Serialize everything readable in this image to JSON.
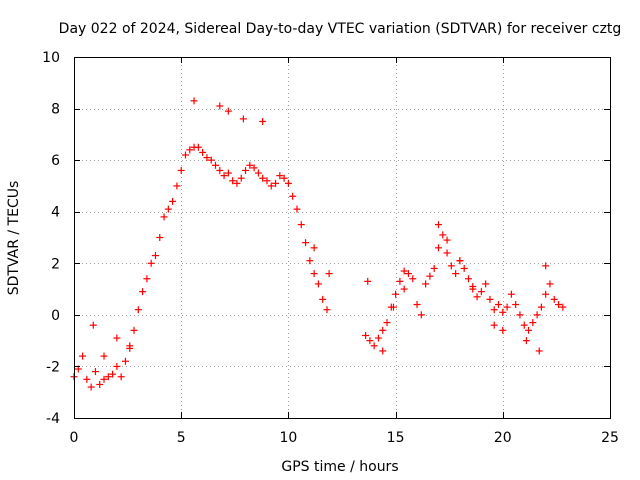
{
  "chart_data": {
    "type": "scatter",
    "title": "Day 022 of 2024, Sidereal Day-to-day VTEC variation (SDTVAR) for receiver cztg",
    "xlabel": "GPS time / hours",
    "ylabel": "SDTVAR / TECUs",
    "xlim": [
      0,
      25
    ],
    "ylim": [
      -4,
      10
    ],
    "xticks": [
      0,
      5,
      10,
      15,
      20,
      25
    ],
    "yticks": [
      -4,
      -2,
      0,
      2,
      4,
      6,
      8,
      10
    ],
    "xtick_labels": [
      "0",
      "5",
      "10",
      "15",
      "20",
      "25"
    ],
    "ytick_labels": [
      "-4",
      "-2",
      "0",
      "2",
      "4",
      "6",
      "8",
      "10"
    ],
    "grid": true,
    "marker": "+",
    "color": "#ff0000",
    "series": [
      {
        "name": "SDTVAR",
        "x": [
          0.0,
          0.2,
          0.4,
          0.6,
          0.8,
          1.0,
          1.2,
          1.4,
          1.6,
          1.8,
          2.0,
          2.2,
          2.4,
          2.6,
          2.8,
          3.0,
          3.2,
          3.4,
          3.6,
          3.8,
          4.0,
          4.2,
          4.4,
          4.6,
          4.8,
          5.0,
          5.2,
          5.4,
          5.6,
          5.8,
          6.0,
          6.2,
          6.4,
          6.6,
          6.8,
          7.0,
          7.2,
          7.4,
          7.6,
          7.8,
          8.0,
          8.2,
          8.4,
          8.6,
          8.8,
          9.0,
          9.2,
          9.4,
          9.6,
          9.8,
          10.0,
          10.2,
          10.4,
          10.6,
          10.8,
          11.0,
          11.2,
          11.4,
          11.6,
          11.8,
          13.6,
          13.8,
          14.0,
          14.2,
          14.4,
          14.6,
          14.8,
          15.0,
          15.2,
          15.4,
          15.6,
          15.8,
          16.0,
          16.2,
          16.4,
          16.6,
          16.8,
          17.0,
          17.2,
          17.4,
          17.6,
          17.8,
          18.0,
          18.2,
          18.4,
          18.6,
          18.8,
          19.0,
          19.2,
          19.4,
          19.6,
          19.8,
          20.0,
          20.2,
          20.4,
          20.6,
          20.8,
          21.0,
          21.2,
          21.4,
          21.6,
          21.8,
          22.0,
          22.2,
          22.4,
          22.6,
          22.8,
          0.9,
          1.4,
          2.0,
          2.6,
          5.6,
          6.8,
          7.2,
          7.9,
          8.8,
          11.2,
          11.9,
          13.7,
          14.4,
          14.9,
          15.4,
          17.0,
          17.4,
          18.0,
          18.6,
          19.6,
          20.0,
          21.1,
          21.7,
          22.0
        ],
        "y": [
          -2.4,
          -2.1,
          -1.6,
          -2.5,
          -2.8,
          -2.2,
          -2.7,
          -2.5,
          -2.4,
          -2.3,
          -2.0,
          -2.4,
          -1.8,
          -1.2,
          -0.6,
          0.2,
          0.9,
          1.4,
          2.0,
          2.3,
          3.0,
          3.8,
          4.1,
          4.4,
          5.0,
          5.6,
          6.2,
          6.4,
          6.5,
          6.5,
          6.3,
          6.1,
          6.0,
          5.8,
          5.6,
          5.4,
          5.5,
          5.2,
          5.1,
          5.3,
          5.6,
          5.8,
          5.7,
          5.5,
          5.3,
          5.2,
          5.0,
          5.1,
          5.4,
          5.3,
          5.1,
          4.6,
          4.1,
          3.5,
          2.8,
          2.1,
          1.6,
          1.2,
          0.6,
          0.2,
          -0.8,
          -1.0,
          -1.2,
          -0.9,
          -0.6,
          -0.3,
          0.3,
          0.8,
          1.3,
          1.0,
          1.6,
          1.4,
          0.4,
          0.0,
          1.2,
          1.5,
          1.8,
          2.6,
          3.1,
          2.4,
          1.9,
          1.6,
          2.1,
          1.8,
          1.4,
          1.0,
          0.7,
          0.9,
          1.2,
          0.6,
          0.2,
          0.4,
          0.1,
          0.3,
          0.8,
          0.4,
          0.0,
          -0.4,
          -0.6,
          -0.3,
          0.0,
          0.3,
          0.8,
          1.2,
          0.6,
          0.4,
          0.3,
          -0.4,
          -1.6,
          -0.9,
          -1.3,
          8.3,
          8.1,
          7.9,
          7.6,
          7.5,
          2.6,
          1.6,
          1.3,
          -1.4,
          0.3,
          1.7,
          3.5,
          2.9,
          2.1,
          1.1,
          -0.4,
          -0.6,
          -1.0,
          -1.4,
          1.9
        ]
      }
    ]
  }
}
